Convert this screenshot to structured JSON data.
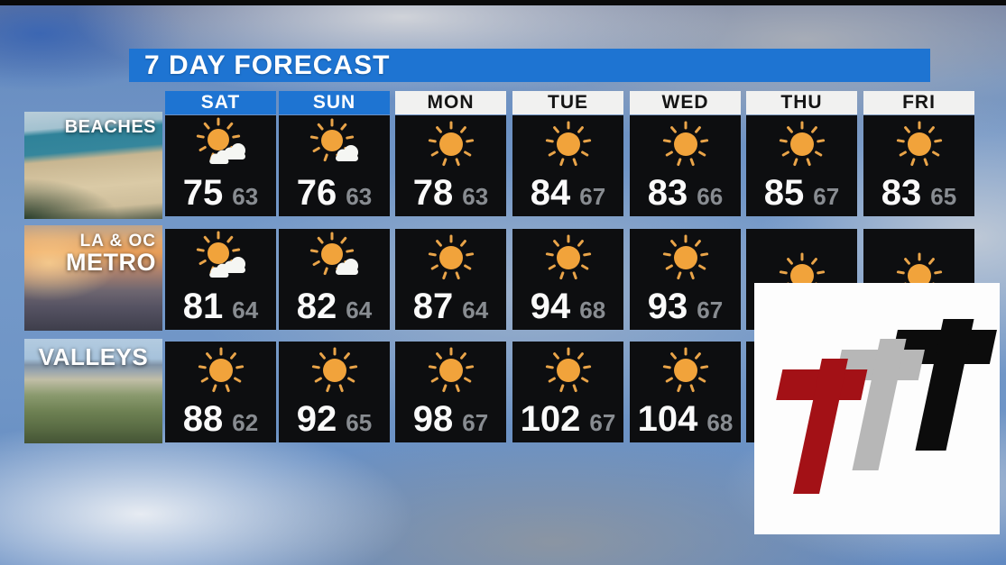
{
  "title": "7 DAY FORECAST",
  "days": [
    {
      "label": "SAT",
      "highlight": true
    },
    {
      "label": "SUN",
      "highlight": true
    },
    {
      "label": "MON",
      "highlight": false
    },
    {
      "label": "TUE",
      "highlight": false
    },
    {
      "label": "WED",
      "highlight": false
    },
    {
      "label": "THU",
      "highlight": false
    },
    {
      "label": "FRI",
      "highlight": false
    }
  ],
  "regions": [
    {
      "id": "beaches",
      "label_lines": [
        "BEACHES"
      ],
      "forecasts": [
        {
          "icon": "sun-clouds",
          "hi": "75",
          "lo": "63"
        },
        {
          "icon": "sun-cloud",
          "hi": "76",
          "lo": "63"
        },
        {
          "icon": "sunny",
          "hi": "78",
          "lo": "63"
        },
        {
          "icon": "sunny",
          "hi": "84",
          "lo": "67"
        },
        {
          "icon": "sunny",
          "hi": "83",
          "lo": "66"
        },
        {
          "icon": "sunny",
          "hi": "85",
          "lo": "67"
        },
        {
          "icon": "sunny",
          "hi": "83",
          "lo": "65"
        }
      ]
    },
    {
      "id": "metro",
      "label_lines": [
        "LA & OC",
        "METRO"
      ],
      "forecasts": [
        {
          "icon": "sun-clouds",
          "hi": "81",
          "lo": "64"
        },
        {
          "icon": "sun-cloud",
          "hi": "82",
          "lo": "64"
        },
        {
          "icon": "sunny",
          "hi": "87",
          "lo": "64"
        },
        {
          "icon": "sunny",
          "hi": "94",
          "lo": "68"
        },
        {
          "icon": "sunny",
          "hi": "93",
          "lo": "67"
        },
        {
          "icon": "sunny",
          "hi": "",
          "lo": ""
        },
        {
          "icon": "sunny",
          "hi": "",
          "lo": ""
        }
      ]
    },
    {
      "id": "valleys",
      "label_lines": [
        "VALLEYS"
      ],
      "forecasts": [
        {
          "icon": "sunny",
          "hi": "88",
          "lo": "62"
        },
        {
          "icon": "sunny",
          "hi": "92",
          "lo": "65"
        },
        {
          "icon": "sunny",
          "hi": "98",
          "lo": "67"
        },
        {
          "icon": "sunny",
          "hi": "102",
          "lo": "67"
        },
        {
          "icon": "sunny",
          "hi": "104",
          "lo": "68"
        },
        {
          "icon": "none",
          "hi": "",
          "lo": ""
        },
        {
          "icon": "none",
          "hi": "",
          "lo": ""
        }
      ]
    }
  ],
  "chart_data": {
    "type": "table",
    "title": "7 DAY FORECAST",
    "columns": [
      "SAT",
      "SUN",
      "MON",
      "TUE",
      "WED",
      "THU",
      "FRI"
    ],
    "rows": [
      {
        "region": "BEACHES",
        "hi": [
          75,
          76,
          78,
          84,
          83,
          85,
          83
        ],
        "lo": [
          63,
          63,
          63,
          67,
          66,
          67,
          65
        ]
      },
      {
        "region": "LA & OC METRO",
        "hi": [
          81,
          82,
          87,
          94,
          93,
          null,
          null
        ],
        "lo": [
          64,
          64,
          64,
          68,
          67,
          null,
          null
        ]
      },
      {
        "region": "VALLEYS",
        "hi": [
          88,
          92,
          98,
          102,
          104,
          null,
          null
        ],
        "lo": [
          62,
          65,
          67,
          67,
          68,
          null,
          null
        ]
      }
    ],
    "notes": "THU and FRI temperatures for LA & OC METRO and VALLEYS are hidden behind the station logo"
  },
  "colors": {
    "header_blue": "#1e74d2",
    "weekend_day_blue": "#1e74d2",
    "weekday_header_bg": "#f1f1f0",
    "cell_bg": "#0d0e10",
    "hi_temp": "#fafafa",
    "lo_temp": "#888c91",
    "sun": "#f1a33b",
    "cloud": "#f5f6f3"
  },
  "logo": {
    "letters": [
      {
        "name": "t-red",
        "color": "#a31116"
      },
      {
        "name": "t-gray",
        "color": "#b7b7b7"
      },
      {
        "name": "t-black",
        "color": "#0c0c0c"
      }
    ]
  }
}
